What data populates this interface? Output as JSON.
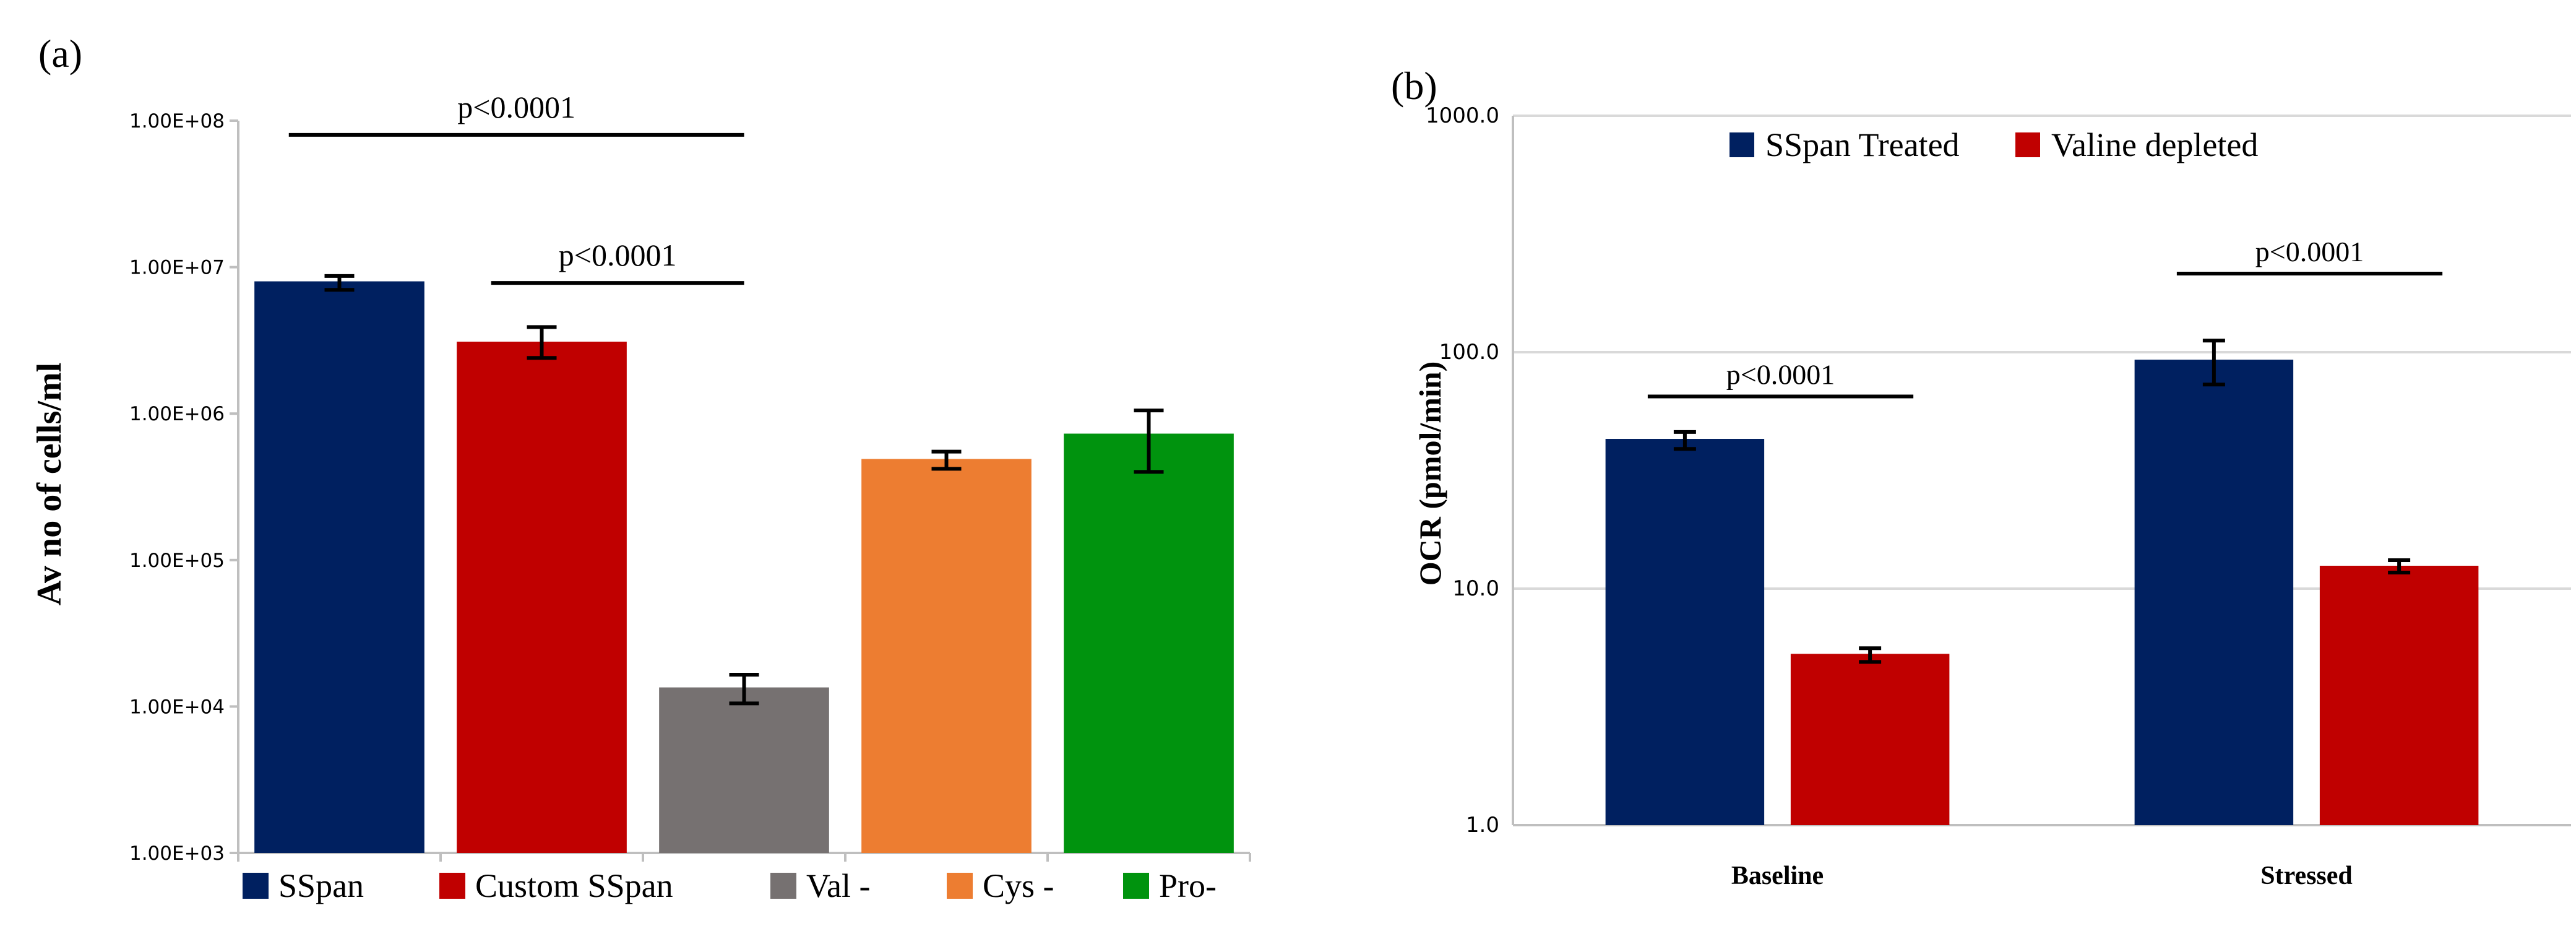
{
  "colors": {
    "navy": "#002060",
    "red": "#C00000",
    "gray": "#767171",
    "orange": "#ED7D31",
    "green": "#00930E",
    "axis": "#BFBFBF",
    "grid": "#D9D9D9",
    "text": "#000000"
  },
  "chart_data": [
    {
      "panel_label": "(a)",
      "type": "bar",
      "scale": "log",
      "title": "",
      "xlabel": "",
      "ylabel": "Av no of cells/ml",
      "ylim": [
        1000,
        100000000
      ],
      "y_ticks": [
        "1.00E+03",
        "1.00E+04",
        "1.00E+05",
        "1.00E+06",
        "1.00E+07",
        "1.00E+08"
      ],
      "gridlines": false,
      "legend_position": "bottom",
      "categories": [
        "SSpan",
        "Custom SSpan",
        "Val -",
        "Cys -",
        "Pro-"
      ],
      "values": [
        8000000,
        3100000,
        13500,
        490000,
        730000
      ],
      "error_low": [
        7000000,
        2400000,
        10500,
        420000,
        400000
      ],
      "error_high": [
        8700000,
        3900000,
        16500,
        550000,
        1050000
      ],
      "bar_colors": [
        "#002060",
        "#C00000",
        "#767171",
        "#ED7D31",
        "#00930E"
      ],
      "annotations": [
        {
          "text": "p<0.0001",
          "from": "SSpan",
          "to": "Val -",
          "y": 80000000
        },
        {
          "text": "p<0.0001",
          "from": "Custom SSpan",
          "to": "Val -",
          "y": 7800000
        }
      ]
    },
    {
      "panel_label": "(b)",
      "type": "bar",
      "scale": "log",
      "title": "",
      "xlabel": "",
      "ylabel": "OCR (pmol/min)",
      "ylim": [
        1,
        1000
      ],
      "y_ticks": [
        "1.0",
        "10.0",
        "100.0",
        "1000.0"
      ],
      "gridlines": true,
      "legend_position": "top",
      "categories": [
        "Baseline",
        "Stressed"
      ],
      "series": [
        {
          "name": "SSpan Treated",
          "color": "#002060",
          "values": [
            43,
            93
          ],
          "error_low": [
            39,
            73
          ],
          "error_high": [
            46,
            112
          ]
        },
        {
          "name": "Valine depleted",
          "color": "#C00000",
          "values": [
            5.3,
            12.5
          ],
          "error_low": [
            4.9,
            11.7
          ],
          "error_high": [
            5.6,
            13.2
          ]
        }
      ],
      "annotations": [
        {
          "text": "p<0.0001",
          "category": "Baseline",
          "y": 65
        },
        {
          "text": "p<0.0001",
          "category": "Stressed",
          "y": 215
        }
      ]
    }
  ]
}
